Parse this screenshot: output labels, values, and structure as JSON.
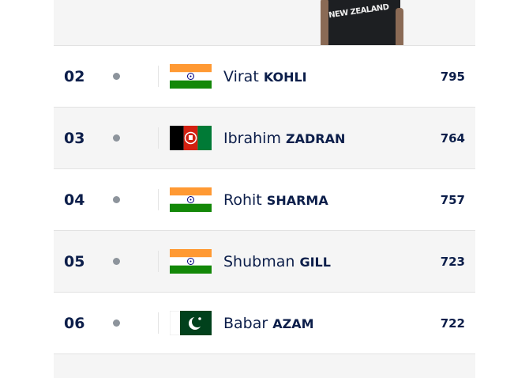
{
  "hero": {
    "jersey_text": "NEW ZEALAND"
  },
  "rows": [
    {
      "rank": "02",
      "first": "Virat",
      "last": "KOHLI",
      "rating": "795",
      "flag": "india"
    },
    {
      "rank": "03",
      "first": "Ibrahim",
      "last": "ZADRAN",
      "rating": "764",
      "flag": "afghanistan"
    },
    {
      "rank": "04",
      "first": "Rohit",
      "last": "SHARMA",
      "rating": "757",
      "flag": "india"
    },
    {
      "rank": "05",
      "first": "Shubman",
      "last": "GILL",
      "rating": "723",
      "flag": "india"
    },
    {
      "rank": "06",
      "first": "Babar",
      "last": "AZAM",
      "rating": "722",
      "flag": "pakistan"
    }
  ],
  "colors": {
    "text": "#0c1e4a",
    "alt_row": "#f5f5f5",
    "dot": "#8d949c"
  }
}
